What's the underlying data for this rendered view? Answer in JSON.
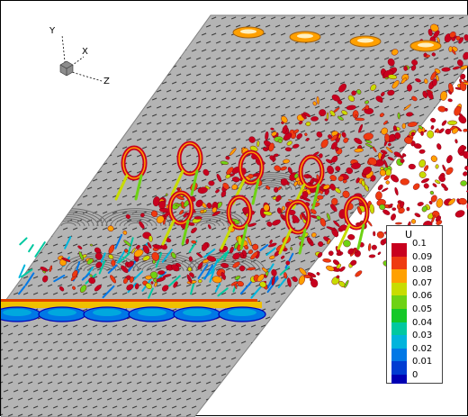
{
  "triad": {
    "y_label": "Y",
    "x_label": "X",
    "z_label": "Z"
  },
  "legend": {
    "title": "U",
    "levels": [
      {
        "label": "0.1",
        "color": "#c8001e"
      },
      {
        "label": "0.09",
        "color": "#ee3a10"
      },
      {
        "label": "0.08",
        "color": "#ffa000"
      },
      {
        "label": "0.07",
        "color": "#c8dc00"
      },
      {
        "label": "0.06",
        "color": "#6ed214"
      },
      {
        "label": "0.05",
        "color": "#14c828"
      },
      {
        "label": "0.04",
        "color": "#00c8a0"
      },
      {
        "label": "0.03",
        "color": "#00b4dc"
      },
      {
        "label": "0.02",
        "color": "#0078e6"
      },
      {
        "label": "0.01",
        "color": "#003cd2"
      },
      {
        "label": "0",
        "color": "#0000b4"
      }
    ]
  },
  "colors": {
    "plate": "#b4b4b4",
    "plate_edge": "#828282",
    "roughness": "#3c3c3c"
  }
}
